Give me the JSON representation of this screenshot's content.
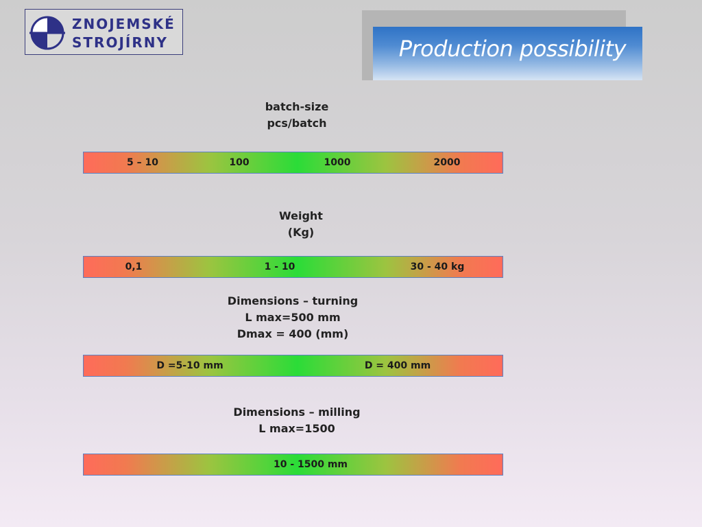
{
  "logo": {
    "line1": "ZNOJEMSKÉ",
    "line2": "STROJÍRNY"
  },
  "slide_title": "Production possibility",
  "sections": [
    {
      "label_lines": [
        "batch-size",
        "pcs/batch"
      ],
      "ticks": [
        "5 – 10",
        "100",
        "1000",
        "2000"
      ]
    },
    {
      "label_lines": [
        "Weight",
        "(Kg)"
      ],
      "ticks": [
        "0,1",
        "1 - 10",
        "30 - 40 kg"
      ]
    },
    {
      "label_lines": [
        "Dimensions – turning",
        "L max=500 mm",
        "Dmax = 400 (mm)"
      ],
      "ticks": [
        "D =5-10 mm",
        "D = 400 mm"
      ]
    },
    {
      "label_lines": [
        "Dimensions – milling",
        "L max=1500"
      ],
      "ticks": [
        "10 - 1500 mm"
      ]
    }
  ],
  "colors": {
    "logo_navy": "#2e3187",
    "scale_low": "#ff6b5a",
    "scale_high": "#2bdc38",
    "title_blue": "#2f73c6"
  }
}
